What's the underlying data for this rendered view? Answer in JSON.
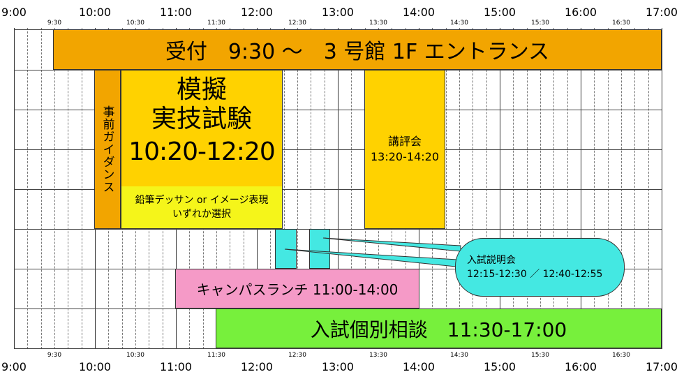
{
  "axis": {
    "hours": [
      "9:00",
      "10:00",
      "11:00",
      "12:00",
      "13:00",
      "14:00",
      "15:00",
      "16:00",
      "17:00"
    ],
    "halves": [
      "9:30",
      "10:30",
      "11:30",
      "12:30",
      "13:30",
      "14:30",
      "15:30",
      "16:30"
    ]
  },
  "blocks": {
    "reception": {
      "text": "受付　9:30 ～　3 号館 1F エントランス",
      "color": "#f2a500"
    },
    "pre_guidance": {
      "text": "事前ガイダンス",
      "color": "#f2a500"
    },
    "mock_exam": {
      "title_line1": "模擬",
      "title_line2": "実技試験",
      "time": "10:20-12:20",
      "note_line1": "鉛筆デッサン or イメージ表現",
      "note_line2": "いずれか選択",
      "color": "#ffd200",
      "note_color": "#f5f51a"
    },
    "review": {
      "title": "講評会",
      "time": "13:20-14:20",
      "color": "#ffd200"
    },
    "briefing_slot1": {
      "color": "#44e8e2"
    },
    "briefing_slot2": {
      "color": "#44e8e2"
    },
    "lunch": {
      "text": "キャンパスランチ 11:00-14:00",
      "color": "#f59ac7"
    },
    "consultation": {
      "text": "入試個別相談　11:30-17:00",
      "color": "#77f03c"
    }
  },
  "callout": {
    "title": "入試説明会",
    "times": "12:15-12:30 ／ 12:40-12:55",
    "color": "#44e8e2"
  }
}
